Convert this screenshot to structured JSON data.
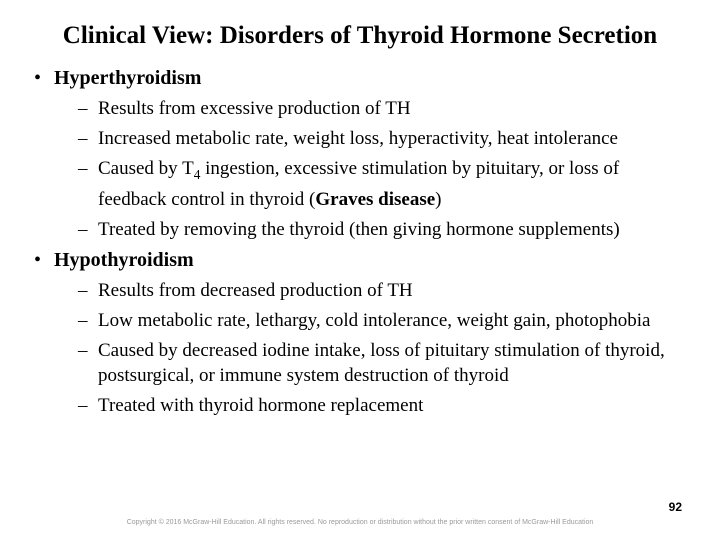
{
  "title": "Clinical View: Disorders of Thyroid Hormone Secretion",
  "sections": [
    {
      "heading": "Hyperthyroidism",
      "points": [
        {
          "html": "Results from excessive production of TH"
        },
        {
          "html": "Increased metabolic rate, weight loss, hyperactivity, heat intolerance"
        },
        {
          "html": "Caused by T<span class=\"sub\">4</span> ingestion, excessive stimulation by pituitary, or loss of feedback control in thyroid (<span class=\"bold\">Graves disease</span>)"
        },
        {
          "html": "Treated by removing the thyroid (then giving hormone supplements)"
        }
      ]
    },
    {
      "heading": "Hypothyroidism",
      "points": [
        {
          "html": "Results from decreased production of TH"
        },
        {
          "html": "Low metabolic rate, lethargy, cold intolerance, weight gain, photophobia"
        },
        {
          "html": "Caused by decreased iodine intake, loss of pituitary stimulation of thyroid,  postsurgical, or immune system destruction of thyroid"
        },
        {
          "html": "Treated with thyroid hormone replacement"
        }
      ]
    }
  ],
  "page_number": "92",
  "copyright": "Copyright © 2016 McGraw-Hill Education. All rights reserved. No reproduction or distribution without the prior written consent of McGraw-Hill Education",
  "colors": {
    "background": "#ffffff",
    "text": "#000000",
    "footer": "#9a9a9a"
  }
}
